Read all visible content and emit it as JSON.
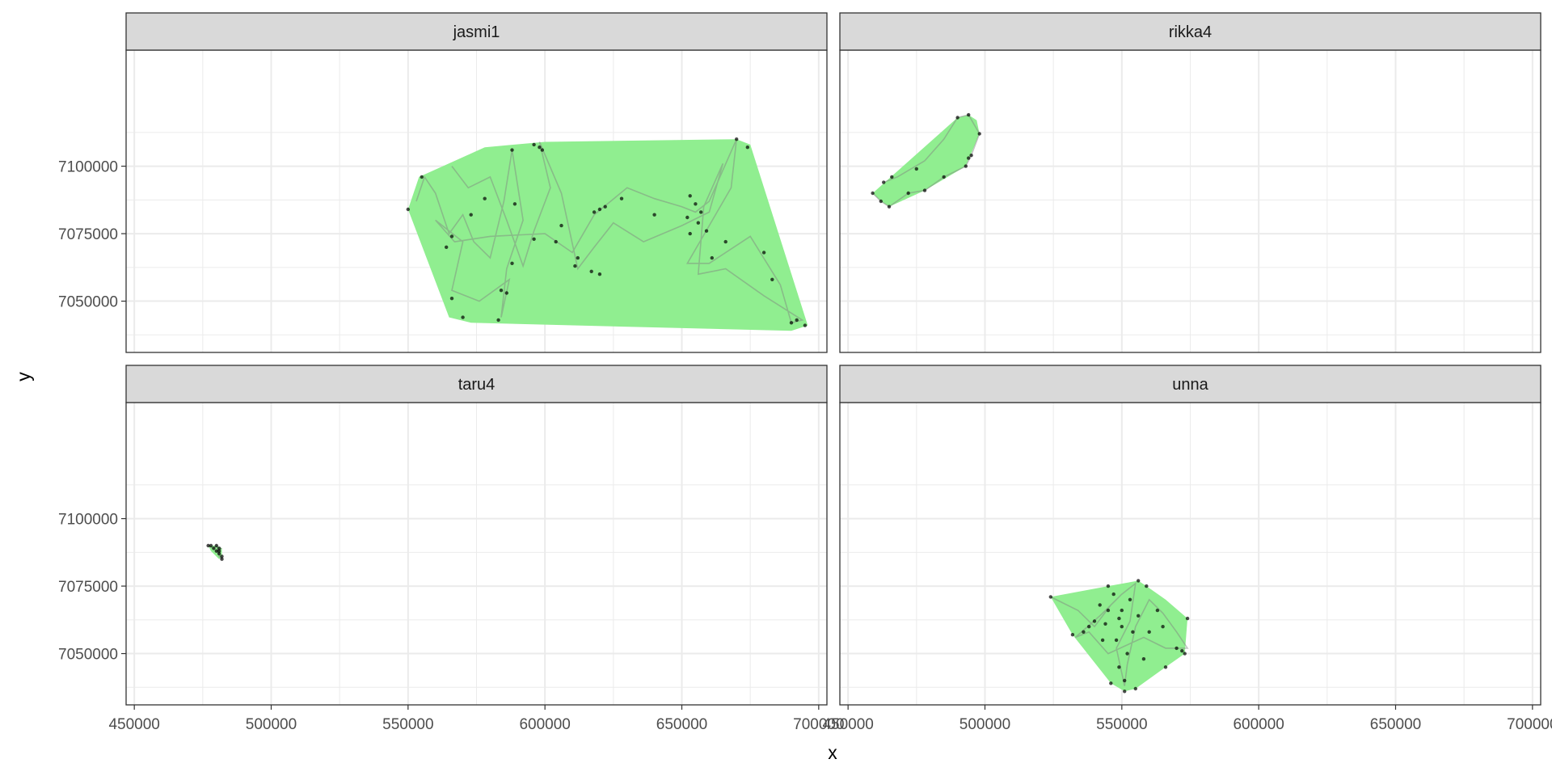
{
  "chart_data": {
    "type": "scatter",
    "layout": "facet_wrap 2x2, shared axes",
    "xlabel": "x",
    "ylabel": "y",
    "xlim": [
      447000,
      703000
    ],
    "ylim": [
      7031000,
      7143000
    ],
    "x_ticks": [
      450000,
      500000,
      550000,
      600000,
      650000,
      700000
    ],
    "x_tick_labels": [
      "450000",
      "500000",
      "550000",
      "600000",
      "650000",
      "700000"
    ],
    "y_ticks": [
      7050000,
      7075000,
      7100000
    ],
    "y_tick_labels": [
      "7050000",
      "7075000",
      "7100000"
    ],
    "grid": true,
    "colors": {
      "hull_fill": "#90ee90",
      "points": "#000000",
      "paths": "#7f7f7f",
      "strip_bg": "#d9d9d9",
      "grid": "#ebebeb"
    },
    "panels": [
      {
        "name": "jasmi1",
        "hull": [
          [
            550000,
            7084000
          ],
          [
            554000,
            7096000
          ],
          [
            578000,
            7107000
          ],
          [
            600000,
            7109000
          ],
          [
            670000,
            7110000
          ],
          [
            675000,
            7108000
          ],
          [
            696000,
            7041000
          ],
          [
            690000,
            7039000
          ],
          [
            573000,
            7042000
          ],
          [
            565000,
            7044000
          ],
          [
            550000,
            7084000
          ]
        ],
        "path": [
          [
            553000,
            7087000
          ],
          [
            556000,
            7096000
          ],
          [
            560000,
            7090000
          ],
          [
            565000,
            7075000
          ],
          [
            570000,
            7082000
          ],
          [
            574000,
            7072000
          ],
          [
            580000,
            7066000
          ],
          [
            585000,
            7087000
          ],
          [
            588000,
            7106000
          ],
          [
            592000,
            7080000
          ],
          [
            586000,
            7062000
          ],
          [
            584000,
            7044000
          ],
          [
            587000,
            7058000
          ],
          [
            576000,
            7050000
          ],
          [
            566000,
            7054000
          ],
          [
            570000,
            7072000
          ],
          [
            560000,
            7080000
          ],
          [
            567000,
            7072000
          ],
          [
            580000,
            7074000
          ],
          [
            600000,
            7075000
          ],
          [
            610000,
            7068000
          ],
          [
            618000,
            7082000
          ],
          [
            630000,
            7092000
          ],
          [
            640000,
            7088000
          ],
          [
            650000,
            7085000
          ],
          [
            655000,
            7083000
          ],
          [
            660000,
            7087000
          ],
          [
            670000,
            7110000
          ],
          [
            668000,
            7092000
          ],
          [
            660000,
            7078000
          ],
          [
            652000,
            7064000
          ],
          [
            660000,
            7064000
          ],
          [
            675000,
            7074000
          ],
          [
            686000,
            7056000
          ],
          [
            690000,
            7042000
          ],
          [
            694000,
            7043000
          ],
          [
            680000,
            7052000
          ],
          [
            666000,
            7062000
          ],
          [
            656000,
            7060000
          ],
          [
            658000,
            7085000
          ],
          [
            665000,
            7101000
          ],
          [
            660000,
            7083000
          ],
          [
            650000,
            7078000
          ],
          [
            636000,
            7072000
          ],
          [
            625000,
            7079000
          ],
          [
            618000,
            7070000
          ],
          [
            612000,
            7062000
          ],
          [
            606000,
            7090000
          ],
          [
            598000,
            7109000
          ],
          [
            602000,
            7092000
          ],
          [
            596000,
            7076000
          ],
          [
            592000,
            7063000
          ],
          [
            586000,
            7080000
          ],
          [
            580000,
            7096000
          ],
          [
            572000,
            7092000
          ],
          [
            566000,
            7100000
          ]
        ],
        "points": [
          [
            555000,
            7096000
          ],
          [
            588000,
            7106000
          ],
          [
            598000,
            7107000
          ],
          [
            599000,
            7106000
          ],
          [
            596000,
            7108000
          ],
          [
            620000,
            7084000
          ],
          [
            618000,
            7083000
          ],
          [
            622000,
            7085000
          ],
          [
            653000,
            7089000
          ],
          [
            655000,
            7086000
          ],
          [
            657000,
            7083000
          ],
          [
            652000,
            7081000
          ],
          [
            656000,
            7079000
          ],
          [
            659000,
            7076000
          ],
          [
            653000,
            7075000
          ],
          [
            612000,
            7066000
          ],
          [
            611000,
            7063000
          ],
          [
            617000,
            7061000
          ],
          [
            620000,
            7060000
          ],
          [
            584000,
            7054000
          ],
          [
            586000,
            7053000
          ],
          [
            588000,
            7064000
          ],
          [
            566000,
            7051000
          ],
          [
            570000,
            7044000
          ],
          [
            583000,
            7043000
          ],
          [
            692000,
            7043000
          ],
          [
            690000,
            7042000
          ],
          [
            695000,
            7041000
          ],
          [
            670000,
            7110000
          ],
          [
            674000,
            7107000
          ],
          [
            550000,
            7084000
          ],
          [
            566000,
            7074000
          ],
          [
            564000,
            7070000
          ],
          [
            573000,
            7082000
          ],
          [
            578000,
            7088000
          ],
          [
            606000,
            7078000
          ],
          [
            604000,
            7072000
          ],
          [
            628000,
            7088000
          ],
          [
            640000,
            7082000
          ],
          [
            661000,
            7066000
          ],
          [
            666000,
            7072000
          ],
          [
            680000,
            7068000
          ],
          [
            683000,
            7058000
          ],
          [
            596000,
            7073000
          ],
          [
            589000,
            7086000
          ]
        ]
      },
      {
        "name": "rikka4",
        "hull": [
          [
            459000,
            7090000
          ],
          [
            462000,
            7087000
          ],
          [
            465000,
            7085000
          ],
          [
            478000,
            7091000
          ],
          [
            493000,
            7100000
          ],
          [
            498000,
            7112000
          ],
          [
            497000,
            7117000
          ],
          [
            494000,
            7119000
          ],
          [
            490000,
            7118000
          ],
          [
            459000,
            7090000
          ]
        ],
        "path": [
          [
            459000,
            7090000
          ],
          [
            462000,
            7087000
          ],
          [
            465000,
            7085000
          ],
          [
            472000,
            7090000
          ],
          [
            478000,
            7091000
          ],
          [
            485000,
            7096000
          ],
          [
            493000,
            7100000
          ],
          [
            495000,
            7104000
          ],
          [
            498000,
            7112000
          ],
          [
            494000,
            7119000
          ],
          [
            490000,
            7118000
          ],
          [
            485000,
            7110000
          ],
          [
            478000,
            7102000
          ],
          [
            468000,
            7096000
          ],
          [
            463000,
            7094000
          ]
        ],
        "points": [
          [
            459000,
            7090000
          ],
          [
            462000,
            7087000
          ],
          [
            465000,
            7085000
          ],
          [
            472000,
            7090000
          ],
          [
            478000,
            7091000
          ],
          [
            485000,
            7096000
          ],
          [
            493000,
            7100000
          ],
          [
            494000,
            7103000
          ],
          [
            495000,
            7104000
          ],
          [
            498000,
            7112000
          ],
          [
            494000,
            7119000
          ],
          [
            490000,
            7118000
          ],
          [
            463000,
            7094000
          ],
          [
            466000,
            7096000
          ],
          [
            475000,
            7099000
          ]
        ]
      },
      {
        "name": "taru4",
        "hull": [
          [
            477000,
            7090000
          ],
          [
            480000,
            7090000
          ],
          [
            482000,
            7089000
          ],
          [
            482000,
            7086000
          ],
          [
            481000,
            7085000
          ],
          [
            478000,
            7088000
          ],
          [
            477000,
            7090000
          ]
        ],
        "path": [
          [
            477000,
            7090000
          ],
          [
            479000,
            7089000
          ],
          [
            480000,
            7090000
          ],
          [
            481000,
            7088000
          ],
          [
            481000,
            7086000
          ],
          [
            482000,
            7085000
          ],
          [
            480000,
            7088000
          ],
          [
            482000,
            7089000
          ]
        ],
        "points": [
          [
            477000,
            7090000
          ],
          [
            478000,
            7090000
          ],
          [
            479000,
            7089000
          ],
          [
            480000,
            7090000
          ],
          [
            481000,
            7089000
          ],
          [
            481000,
            7088000
          ],
          [
            481000,
            7087000
          ],
          [
            482000,
            7086000
          ],
          [
            482000,
            7085000
          ],
          [
            480000,
            7088000
          ]
        ]
      },
      {
        "name": "unna",
        "hull": [
          [
            524000,
            7071000
          ],
          [
            545000,
            7075000
          ],
          [
            556000,
            7077000
          ],
          [
            559000,
            7075000
          ],
          [
            566000,
            7070000
          ],
          [
            574000,
            7063000
          ],
          [
            573000,
            7050000
          ],
          [
            566000,
            7045000
          ],
          [
            555000,
            7037000
          ],
          [
            551000,
            7036000
          ],
          [
            546000,
            7039000
          ],
          [
            532000,
            7057000
          ],
          [
            524000,
            7071000
          ]
        ],
        "path": [
          [
            524000,
            7071000
          ],
          [
            534000,
            7066000
          ],
          [
            540000,
            7060000
          ],
          [
            546000,
            7068000
          ],
          [
            550000,
            7072000
          ],
          [
            555000,
            7076000
          ],
          [
            553000,
            7062000
          ],
          [
            548000,
            7052000
          ],
          [
            551000,
            7038000
          ],
          [
            552000,
            7046000
          ],
          [
            555000,
            7060000
          ],
          [
            560000,
            7070000
          ],
          [
            565000,
            7065000
          ],
          [
            570000,
            7058000
          ],
          [
            574000,
            7052000
          ],
          [
            566000,
            7052000
          ],
          [
            558000,
            7056000
          ],
          [
            545000,
            7050000
          ],
          [
            538000,
            7058000
          ],
          [
            533000,
            7056000
          ],
          [
            542000,
            7064000
          ],
          [
            548000,
            7070000
          ]
        ],
        "points": [
          [
            524000,
            7071000
          ],
          [
            545000,
            7075000
          ],
          [
            556000,
            7077000
          ],
          [
            559000,
            7075000
          ],
          [
            574000,
            7063000
          ],
          [
            573000,
            7050000
          ],
          [
            566000,
            7045000
          ],
          [
            555000,
            7037000
          ],
          [
            551000,
            7036000
          ],
          [
            546000,
            7039000
          ],
          [
            532000,
            7057000
          ],
          [
            550000,
            7060000
          ],
          [
            548000,
            7055000
          ],
          [
            552000,
            7050000
          ],
          [
            549000,
            7045000
          ],
          [
            551000,
            7040000
          ],
          [
            545000,
            7066000
          ],
          [
            540000,
            7062000
          ],
          [
            556000,
            7064000
          ],
          [
            560000,
            7058000
          ],
          [
            570000,
            7052000
          ],
          [
            572000,
            7051000
          ],
          [
            543000,
            7055000
          ],
          [
            538000,
            7060000
          ],
          [
            553000,
            7070000
          ],
          [
            547000,
            7072000
          ],
          [
            563000,
            7066000
          ],
          [
            558000,
            7048000
          ],
          [
            550000,
            7066000
          ],
          [
            549000,
            7063000
          ],
          [
            554000,
            7058000
          ],
          [
            544000,
            7061000
          ],
          [
            542000,
            7068000
          ],
          [
            536000,
            7058000
          ],
          [
            565000,
            7060000
          ]
        ]
      }
    ]
  }
}
